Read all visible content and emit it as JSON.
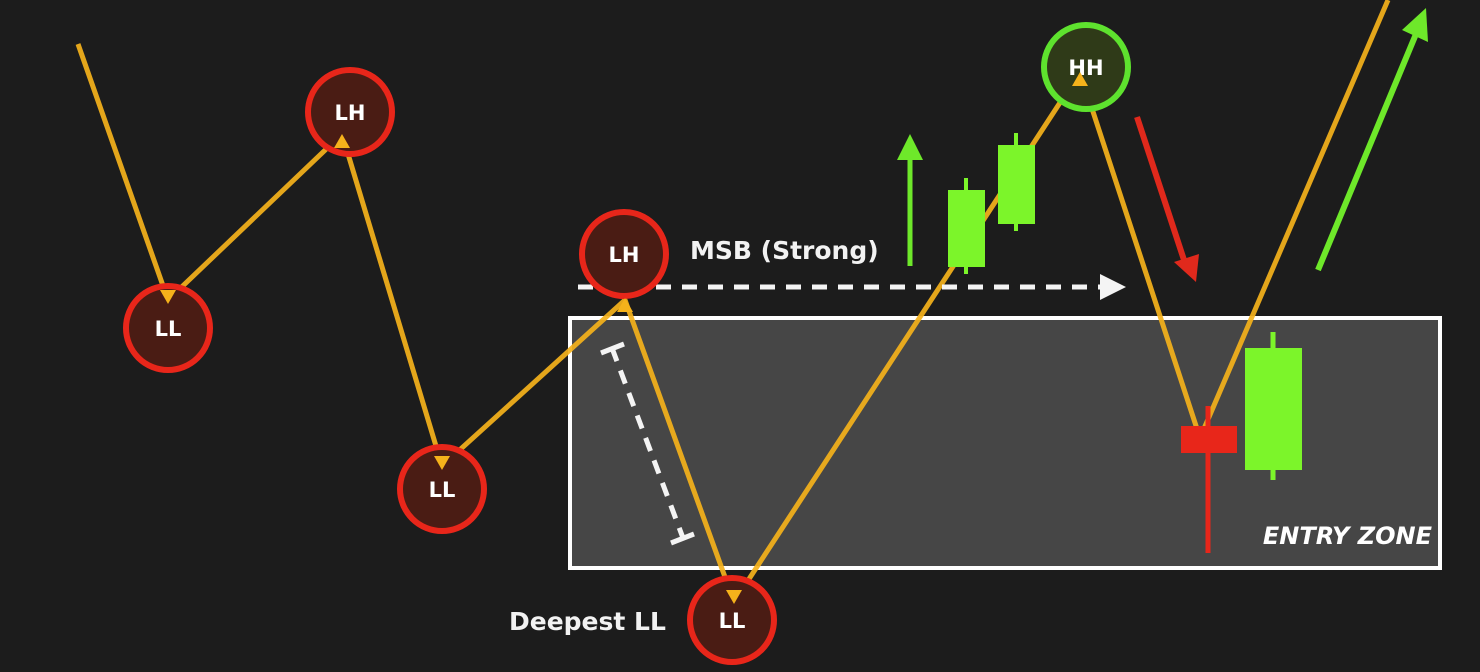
{
  "colors": {
    "background": "#1c1c1c",
    "price_path": "#f5b21b",
    "lower_swing_ring": "#e8261a",
    "lower_swing_fill": "#4a1c14",
    "higher_high_ring": "#5ee22e",
    "higher_high_fill": "#2f3a18",
    "bullish_candle": "#7cf52a",
    "bearish_candle": "#e8261a",
    "zone_fill": "#4a4a4a",
    "zone_border": "#ffffff",
    "dashed_marks": "#f4f4f4",
    "down_arrow": "#e0291c",
    "up_arrow": "#6ee82a"
  },
  "swing_points": [
    {
      "id": "ll-1",
      "label": "LL",
      "kind": "lower"
    },
    {
      "id": "lh-1",
      "label": "LH",
      "kind": "lower"
    },
    {
      "id": "ll-2",
      "label": "LL",
      "kind": "lower"
    },
    {
      "id": "lh-2",
      "label": "LH",
      "kind": "lower"
    },
    {
      "id": "ll-3",
      "label": "LL",
      "kind": "lower"
    },
    {
      "id": "hh-1",
      "label": "HH",
      "kind": "higher"
    }
  ],
  "annotations": {
    "msb_label": "MSB (Strong)",
    "deepest_label": "Deepest LL",
    "zone_label": "ENTRY ZONE"
  }
}
